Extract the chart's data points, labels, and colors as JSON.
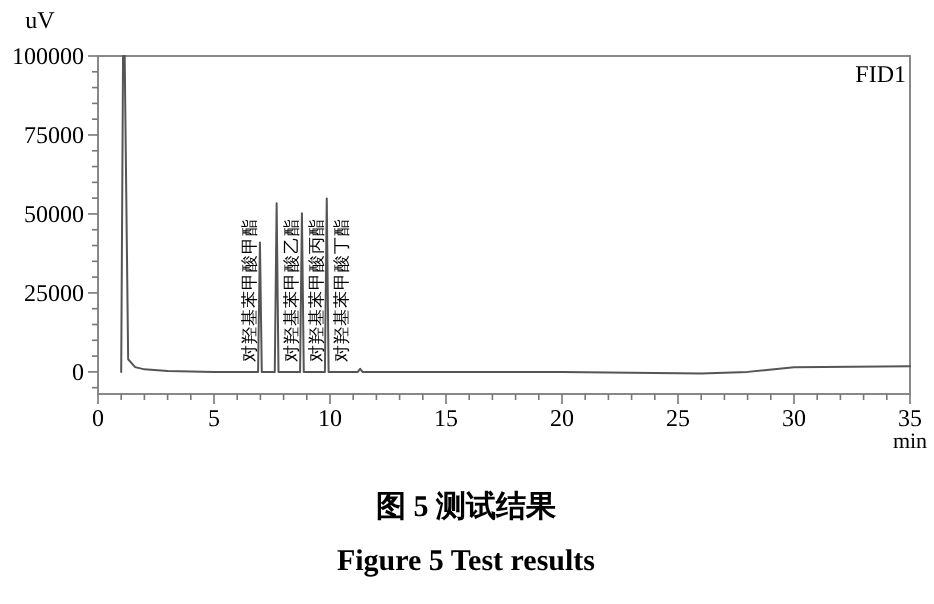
{
  "chart_data": {
    "type": "line",
    "title": "图 5 测试结果",
    "subtitle": "Figure 5 Test results",
    "xlabel": "min",
    "ylabel": "uV",
    "x": [
      1.0,
      1.08,
      1.15,
      1.3,
      1.6,
      2.0,
      3.0,
      5.0,
      6.9,
      6.98,
      7.06,
      7.62,
      7.7,
      7.78,
      8.71,
      8.79,
      8.87,
      9.78,
      9.86,
      9.94,
      11.2,
      11.3,
      11.4,
      20,
      26,
      28,
      30,
      35
    ],
    "series": [
      {
        "color": "#555555",
        "values": [
          0,
          100000,
          100000,
          4000,
          1500,
          800,
          300,
          0,
          0,
          41000,
          0,
          0,
          53400,
          0,
          0,
          50200,
          0,
          0,
          54900,
          0,
          0,
          1000,
          0,
          0,
          -500,
          0,
          1500,
          1800
        ]
      }
    ],
    "xlim": [
      0,
      35
    ],
    "ylim": [
      -7000,
      100000
    ],
    "xticks": [
      0,
      {
        "value": 1,
        "label": null
      },
      {
        "value": 2,
        "label": null
      },
      {
        "value": 3,
        "label": null
      },
      {
        "value": 4,
        "label": null
      },
      5,
      {
        "value": 6,
        "label": null
      },
      {
        "value": 7,
        "label": null
      },
      {
        "value": 8,
        "label": null
      },
      {
        "value": 9,
        "label": null
      },
      10,
      {
        "value": 11,
        "label": null
      },
      {
        "value": 12,
        "label": null
      },
      {
        "value": 13,
        "label": null
      },
      {
        "value": 14,
        "label": null
      },
      15,
      {
        "value": 16,
        "label": null
      },
      {
        "value": 17,
        "label": null
      },
      {
        "value": 18,
        "label": null
      },
      {
        "value": 19,
        "label": null
      },
      20,
      {
        "value": 21,
        "label": null
      },
      {
        "value": 22,
        "label": null
      },
      {
        "value": 23,
        "label": null
      },
      {
        "value": 24,
        "label": null
      },
      25,
      {
        "value": 26,
        "label": null
      },
      {
        "value": 27,
        "label": null
      },
      {
        "value": 28,
        "label": null
      },
      {
        "value": 29,
        "label": null
      },
      30,
      {
        "value": 31,
        "label": null
      },
      {
        "value": 32,
        "label": null
      },
      {
        "value": 33,
        "label": null
      },
      {
        "value": 34,
        "label": null
      },
      35
    ],
    "yticks": [
      {
        "value": -5000,
        "label": null
      },
      0,
      {
        "value": 5000,
        "label": null
      },
      {
        "value": 10000,
        "label": null
      },
      {
        "value": 15000,
        "label": null
      },
      {
        "value": 20000,
        "label": null
      },
      25000,
      {
        "value": 30000,
        "label": null
      },
      {
        "value": 35000,
        "label": null
      },
      {
        "value": 40000,
        "label": null
      },
      {
        "value": 45000,
        "label": null
      },
      50000,
      {
        "value": 55000,
        "label": null
      },
      {
        "value": 60000,
        "label": null
      },
      {
        "value": 65000,
        "label": null
      },
      {
        "value": 70000,
        "label": null
      },
      75000,
      {
        "value": 80000,
        "label": null
      },
      {
        "value": 85000,
        "label": null
      },
      {
        "value": 90000,
        "label": null
      },
      {
        "value": 95000,
        "label": null
      },
      100000
    ],
    "grid": false,
    "marker": "none",
    "line_style": "solid",
    "annotations": [
      "FID1",
      {
        "text": "对羟基苯甲酸甲酯",
        "x": 6.98
      },
      {
        "text": "对羟基苯甲酸乙酯",
        "x": 7.7
      },
      {
        "text": "对羟基苯甲酸丙酯",
        "x": 8.79
      },
      {
        "text": "对羟基苯甲酸丁酯",
        "x": 9.86
      }
    ]
  }
}
